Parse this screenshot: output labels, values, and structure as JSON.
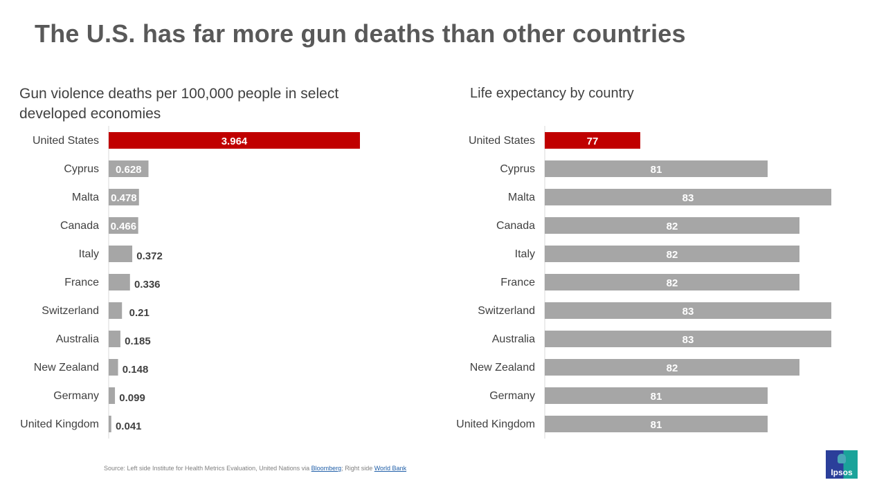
{
  "title": "The U.S. has far more gun deaths than other countries",
  "chart_data": [
    {
      "type": "bar",
      "orientation": "horizontal",
      "title": "Gun violence deaths per 100,000 people in select developed economies",
      "categories": [
        "United States",
        "Cyprus",
        "Malta",
        "Canada",
        "Italy",
        "France",
        "Switzerland",
        "Australia",
        "New Zealand",
        "Germany",
        "United Kingdom"
      ],
      "values": [
        3.964,
        0.628,
        0.478,
        0.466,
        0.372,
        0.336,
        0.21,
        0.185,
        0.148,
        0.099,
        0.041
      ],
      "labels": [
        "3.964",
        "0.628",
        "0.478",
        "0.466",
        "0.372",
        "0.336",
        "0.21",
        "0.185",
        "0.148",
        "0.099",
        "0.041"
      ],
      "highlight": "United States",
      "highlight_color": "#c00000",
      "bar_color": "#a6a6a6",
      "xlim": [
        0,
        3.964
      ]
    },
    {
      "type": "bar",
      "orientation": "horizontal",
      "title": "Life expectancy by country",
      "categories": [
        "United States",
        "Cyprus",
        "Malta",
        "Canada",
        "Italy",
        "France",
        "Switzerland",
        "Australia",
        "New Zealand",
        "Germany",
        "United Kingdom"
      ],
      "values": [
        77,
        81,
        83,
        82,
        82,
        82,
        83,
        83,
        82,
        81,
        81
      ],
      "labels": [
        "77",
        "81",
        "83",
        "82",
        "82",
        "82",
        "83",
        "83",
        "82",
        "81",
        "81"
      ],
      "highlight": "United States",
      "highlight_color": "#c00000",
      "bar_color": "#a6a6a6",
      "xlim": [
        74,
        83
      ]
    }
  ],
  "source": {
    "prefix": "Source: Left side Institute for Health Metrics Evaluation, United Nations via ",
    "link1": "Bloomberg",
    "mid": "; Right side ",
    "link2": "World Bank"
  },
  "logo": "Ipsos"
}
